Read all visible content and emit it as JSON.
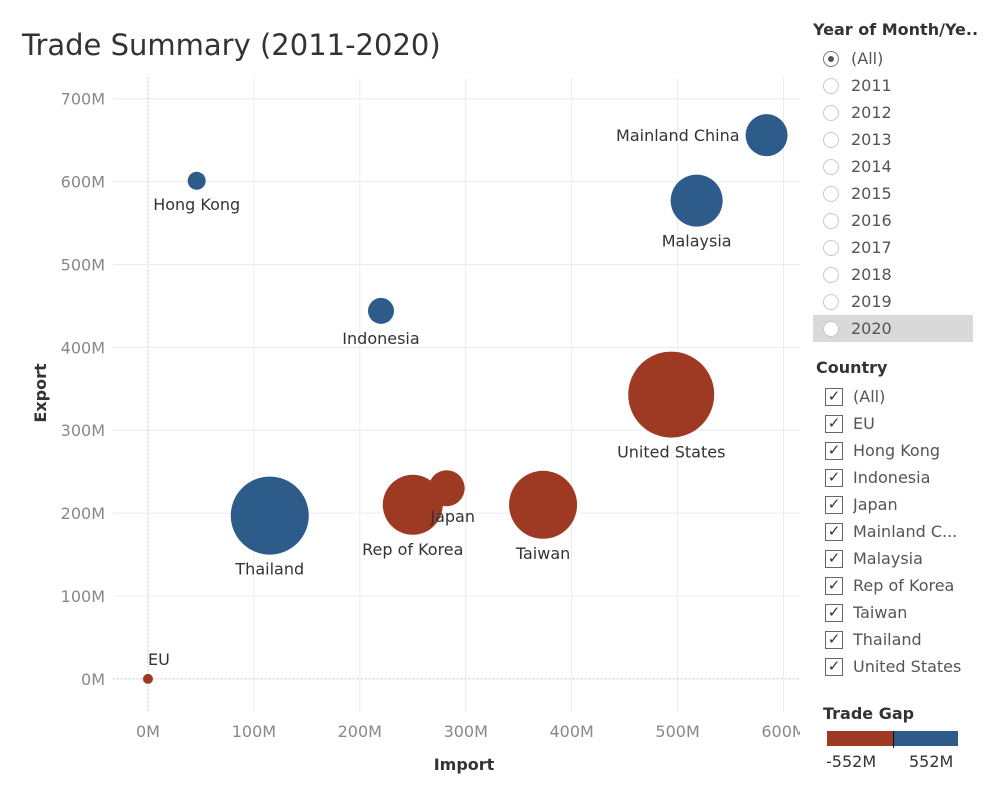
{
  "title": "Trade Summary (2011-2020)",
  "colors": {
    "positive": "#2e5c8a",
    "negative": "#9e3a24"
  },
  "chart_data": {
    "type": "scatter",
    "title": "Trade Summary (2011-2020)",
    "xlabel": "Import",
    "ylabel": "Export",
    "xlim": [
      -33,
      625
    ],
    "ylim": [
      -40,
      725
    ],
    "x_ticks": [
      0,
      100,
      200,
      300,
      400,
      500,
      600
    ],
    "x_tick_labels": [
      "0M",
      "100M",
      "200M",
      "300M",
      "400M",
      "500M",
      "600M"
    ],
    "y_ticks": [
      0,
      100,
      200,
      300,
      400,
      500,
      600,
      700
    ],
    "y_tick_labels": [
      "0M",
      "100M",
      "200M",
      "300M",
      "400M",
      "500M",
      "600M",
      "700M"
    ],
    "units": "millions",
    "size_measure": "absolute trade gap",
    "color_measure": "Trade Gap",
    "grid": true,
    "points": [
      {
        "name": "EU",
        "import": 0,
        "export": 0,
        "size": 5,
        "sign": "negative",
        "label_pos": "above"
      },
      {
        "name": "Hong Kong",
        "import": 46,
        "export": 601,
        "size": 9,
        "sign": "positive",
        "label_pos": "below"
      },
      {
        "name": "Indonesia",
        "import": 220,
        "export": 444,
        "size": 13,
        "sign": "positive",
        "label_pos": "below"
      },
      {
        "name": "Japan",
        "import": 282,
        "export": 230,
        "size": 18,
        "sign": "negative",
        "label_pos": "below-right"
      },
      {
        "name": "Mainland China",
        "import": 584,
        "export": 656,
        "size": 21,
        "sign": "positive",
        "label_pos": "left"
      },
      {
        "name": "Malaysia",
        "import": 518,
        "export": 577,
        "size": 26,
        "sign": "positive",
        "label_pos": "below"
      },
      {
        "name": "Rep of Korea",
        "import": 250,
        "export": 210,
        "size": 30,
        "sign": "negative",
        "label_pos": "below"
      },
      {
        "name": "Taiwan",
        "import": 373,
        "export": 210,
        "size": 34,
        "sign": "negative",
        "label_pos": "below"
      },
      {
        "name": "Thailand",
        "import": 115,
        "export": 197,
        "size": 39,
        "sign": "positive",
        "label_pos": "below"
      },
      {
        "name": "United States",
        "import": 494,
        "export": 343,
        "size": 43,
        "sign": "negative",
        "label_pos": "below"
      }
    ]
  },
  "year_filter": {
    "title": "Year of Month/Ye..",
    "options": [
      "(All)",
      "2011",
      "2012",
      "2013",
      "2014",
      "2015",
      "2016",
      "2017",
      "2018",
      "2019",
      "2020"
    ],
    "selected": "(All)",
    "highlighted": "2020"
  },
  "country_filter": {
    "title": "Country",
    "options": [
      "(All)",
      "EU",
      "Hong Kong",
      "Indonesia",
      "Japan",
      "Mainland C...",
      "Malaysia",
      "Rep of Korea",
      "Taiwan",
      "Thailand",
      "United States"
    ],
    "all_checked": true
  },
  "trade_gap_legend": {
    "title": "Trade Gap",
    "min_label": "-552M",
    "max_label": "552M"
  }
}
